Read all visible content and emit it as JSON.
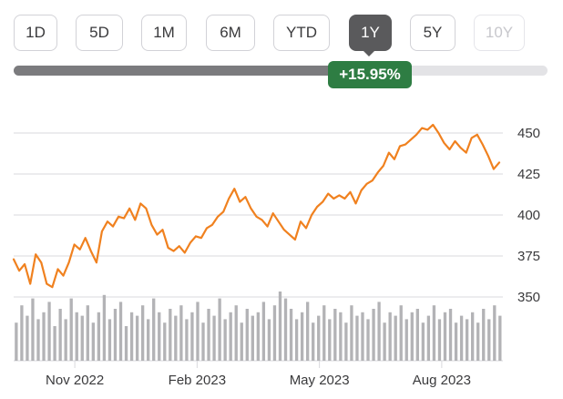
{
  "ranges": {
    "items": [
      {
        "label": "1D"
      },
      {
        "label": "5D"
      },
      {
        "label": "1M"
      },
      {
        "label": "6M"
      },
      {
        "label": "YTD"
      },
      {
        "label": "1Y"
      },
      {
        "label": "5Y"
      },
      {
        "label": "10Y"
      }
    ],
    "selected": "1Y",
    "disabled": [
      "10Y"
    ]
  },
  "range_slider": {
    "fill_fraction": 0.63
  },
  "change_badge": {
    "text": "+15.95%",
    "color": "#2e7d43"
  },
  "colors": {
    "line": "#f0811f",
    "volume": "#b3b3b6",
    "grid": "#d9d9dd"
  },
  "chart_data": [
    {
      "type": "line",
      "name": "price",
      "ylim": [
        340,
        460
      ],
      "y_ticks": [
        350,
        375,
        400,
        425,
        450
      ],
      "y_tick_labels": [
        "350",
        "375",
        "400",
        "425",
        "450"
      ],
      "x_tick_labels": [
        "Nov 2022",
        "Feb 2023",
        "May 2023",
        "Aug 2023"
      ],
      "values": [
        373,
        366,
        370,
        358,
        376,
        371,
        358,
        356,
        367,
        363,
        371,
        382,
        379,
        386,
        378,
        371,
        390,
        396,
        393,
        399,
        398,
        404,
        397,
        407,
        404,
        394,
        388,
        391,
        380,
        378,
        381,
        377,
        383,
        387,
        386,
        392,
        394,
        399,
        402,
        410,
        416,
        408,
        411,
        404,
        399,
        397,
        393,
        401,
        396,
        391,
        388,
        385,
        396,
        392,
        400,
        405,
        408,
        413,
        410,
        412,
        410,
        414,
        407,
        415,
        419,
        421,
        426,
        430,
        438,
        434,
        442,
        443,
        446,
        449,
        453,
        452,
        455,
        450,
        444,
        440,
        445,
        441,
        438,
        447,
        449,
        443,
        436,
        428,
        432
      ]
    },
    {
      "type": "bar",
      "name": "volume",
      "values": [
        0.55,
        0.8,
        0.65,
        0.9,
        0.6,
        0.7,
        0.85,
        0.5,
        0.75,
        0.6,
        0.9,
        0.7,
        0.65,
        0.8,
        0.55,
        0.7,
        0.95,
        0.6,
        0.75,
        0.85,
        0.5,
        0.7,
        0.65,
        0.8,
        0.6,
        0.9,
        0.7,
        0.55,
        0.75,
        0.65,
        0.8,
        0.6,
        0.7,
        0.85,
        0.55,
        0.75,
        0.65,
        0.9,
        0.6,
        0.7,
        0.8,
        0.55,
        0.75,
        0.65,
        0.7,
        0.85,
        0.6,
        0.8,
        1.0,
        0.9,
        0.75,
        0.6,
        0.7,
        0.85,
        0.55,
        0.65,
        0.8,
        0.6,
        0.75,
        0.7,
        0.55,
        0.8,
        0.65,
        0.7,
        0.6,
        0.75,
        0.85,
        0.55,
        0.7,
        0.65,
        0.8,
        0.6,
        0.7,
        0.75,
        0.55,
        0.65,
        0.8,
        0.6,
        0.7,
        0.75,
        0.55,
        0.65,
        0.6,
        0.7,
        0.55,
        0.75,
        0.6,
        0.8,
        0.65
      ]
    }
  ]
}
